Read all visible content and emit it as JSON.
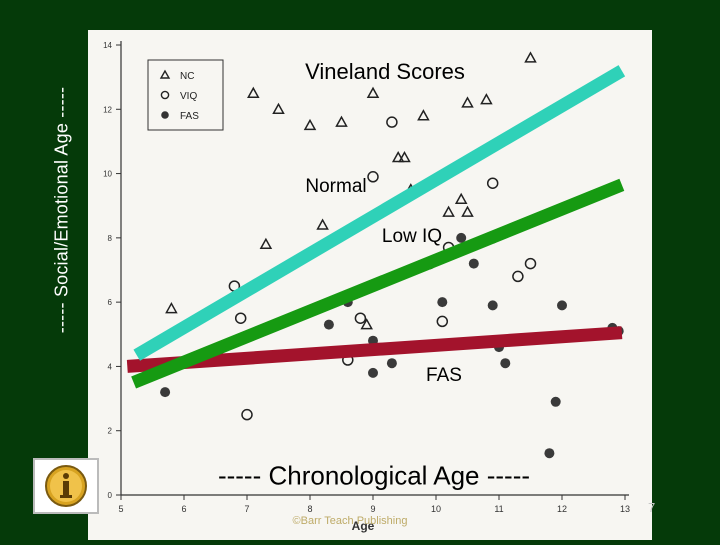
{
  "slide": {
    "y_axis_label": "----- Social/Emotional Age -----",
    "x_axis_label": "----- Chronological Age -----",
    "page_number": "7",
    "copyright_text": "©Barr Teach Publishing"
  },
  "colors": {
    "background": "#053a09",
    "normal_line": "#2fd1b8",
    "low_iq_line": "#169a12",
    "fas_line": "#a3132c"
  },
  "chart_data": {
    "type": "scatter",
    "title": "Vineland Scores",
    "xlabel": "Age",
    "ylabel": "",
    "xlim": [
      5,
      13
    ],
    "ylim": [
      0,
      14
    ],
    "x_ticks": [
      "5",
      "6",
      "7",
      "8",
      "9",
      "10",
      "11",
      "12",
      "13"
    ],
    "y_ticks": [
      "0",
      "2",
      "4",
      "6",
      "8",
      "10",
      "12",
      "14"
    ],
    "legend": {
      "position": "top-left",
      "entries": [
        {
          "symbol": "triangle",
          "label": "NC"
        },
        {
          "symbol": "open-circle",
          "label": "VIQ"
        },
        {
          "symbol": "filled-circle",
          "label": "FAS"
        }
      ]
    },
    "series": [
      {
        "name": "NC",
        "marker": "triangle",
        "points": [
          [
            5.8,
            5.8
          ],
          [
            7.3,
            7.8
          ],
          [
            8.2,
            8.4
          ],
          [
            8.9,
            5.3
          ],
          [
            9.4,
            10.5
          ],
          [
            9.5,
            10.5
          ],
          [
            9.6,
            9.5
          ],
          [
            10.2,
            8.8
          ],
          [
            10.4,
            9.2
          ],
          [
            10.5,
            8.8
          ],
          [
            10.5,
            12.2
          ],
          [
            10.8,
            12.3
          ],
          [
            11.5,
            13.6
          ],
          [
            7.5,
            12.0
          ],
          [
            8.5,
            11.6
          ],
          [
            9.0,
            12.5
          ],
          [
            9.8,
            11.8
          ],
          [
            8.0,
            11.5
          ],
          [
            7.1,
            12.5
          ]
        ]
      },
      {
        "name": "VIQ",
        "marker": "open-circle",
        "points": [
          [
            6.8,
            6.5
          ],
          [
            6.9,
            5.5
          ],
          [
            7.0,
            2.5
          ],
          [
            8.8,
            5.5
          ],
          [
            9.3,
            11.6
          ],
          [
            9.9,
            7.2
          ],
          [
            10.1,
            5.4
          ],
          [
            10.2,
            7.7
          ],
          [
            10.9,
            9.7
          ],
          [
            11.3,
            6.8
          ],
          [
            11.5,
            7.2
          ],
          [
            8.6,
            4.2
          ],
          [
            9.0,
            9.9
          ],
          [
            10.9,
            8.0
          ]
        ]
      },
      {
        "name": "FAS",
        "marker": "filled-circle",
        "points": [
          [
            5.7,
            3.2
          ],
          [
            8.3,
            5.3
          ],
          [
            8.6,
            6.0
          ],
          [
            9.0,
            3.8
          ],
          [
            9.0,
            4.8
          ],
          [
            10.1,
            6.0
          ],
          [
            10.4,
            8.0
          ],
          [
            10.6,
            7.2
          ],
          [
            10.9,
            5.9
          ],
          [
            11.0,
            4.6
          ],
          [
            11.1,
            4.1
          ],
          [
            11.8,
            1.3
          ],
          [
            11.9,
            2.9
          ],
          [
            12.0,
            5.9
          ],
          [
            12.9,
            5.1
          ],
          [
            12.8,
            5.2
          ],
          [
            9.3,
            4.1
          ]
        ]
      }
    ],
    "trend_lines": [
      {
        "label": "Normal",
        "start": [
          5.25,
          4.35
        ],
        "end": [
          12.95,
          13.2
        ]
      },
      {
        "label": "Low IQ",
        "start": [
          5.2,
          3.5
        ],
        "end": [
          12.95,
          9.65
        ]
      },
      {
        "label": "FAS",
        "start": [
          5.1,
          4.0
        ],
        "end": [
          12.95,
          5.05
        ]
      }
    ],
    "annotations": [
      "Normal",
      "Low IQ",
      "FAS"
    ]
  }
}
